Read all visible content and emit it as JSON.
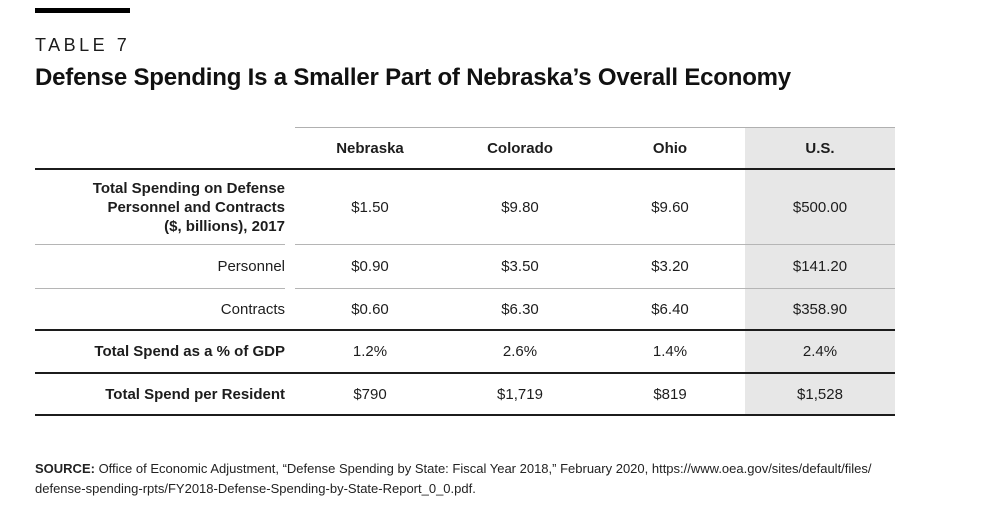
{
  "header": {
    "table_label": "TABLE 7",
    "title": "Defense Spending Is a Smaller Part of Nebraska’s Overall Economy"
  },
  "table": {
    "columns": [
      "Nebraska",
      "Colorado",
      "Ohio",
      "U.S."
    ],
    "highlighted_column": "U.S.",
    "rows": [
      {
        "label": "Total Spending on Defense\nPersonnel and Contracts\n($, billions), 2017",
        "values": [
          "$1.50",
          "$9.80",
          "$9.60",
          "$500.00"
        ]
      },
      {
        "label": "Personnel",
        "values": [
          "$0.90",
          "$3.50",
          "$3.20",
          "$141.20"
        ]
      },
      {
        "label": "Contracts",
        "values": [
          "$0.60",
          "$6.30",
          "$6.40",
          "$358.90"
        ]
      },
      {
        "label": "Total Spend as a % of GDP",
        "values": [
          "1.2%",
          "2.6%",
          "1.4%",
          "2.4%"
        ]
      },
      {
        "label": "Total Spend per Resident",
        "values": [
          "$790",
          "$1,719",
          "$819",
          "$1,528"
        ]
      }
    ]
  },
  "source": {
    "label": "SOURCE:",
    "text": " Office of Economic Adjustment, “Defense Spending by State: Fiscal Year 2018,” February 2020, https://www.oea.gov/sites/default/files/\ndefense-spending-rpts/FY2018-Defense-Spending-by-State-Report_0_0.pdf."
  },
  "colors": {
    "accent_bar": "#000000",
    "thick_rule": "#1c1c1c",
    "thin_rule": "#b5b5b5",
    "highlight_band": "#e7e7e7",
    "text": "#1d1d1d"
  }
}
